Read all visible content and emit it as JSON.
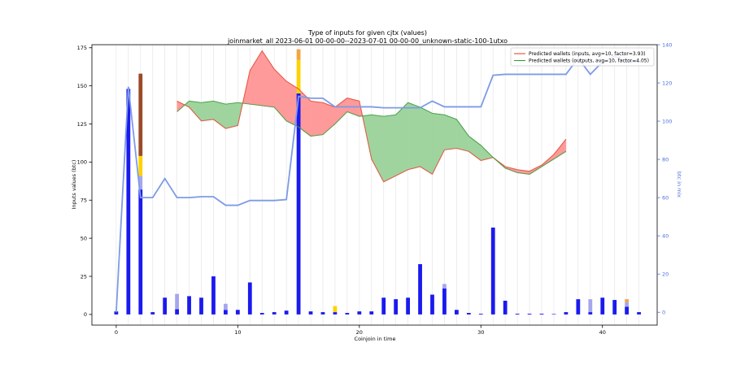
{
  "chart_data": {
    "type": "bar",
    "title": "Type of inputs for given cjtx (values)",
    "subtitle": "joinmarket_all 2023-06-01 00-00-00--2023-07-01 00-00-00_unknown-static-100-1utxo",
    "xlabel": "Coinjoin in time",
    "ylabel": "Inputs values (btc)",
    "y2label": "btc in mix",
    "xlim": [
      -2,
      44.5
    ],
    "ylim": [
      -7,
      177
    ],
    "y2lim": [
      -6.7,
      140
    ],
    "x_ticks": [
      0,
      10,
      20,
      30,
      40
    ],
    "y_ticks": [
      0,
      25,
      50,
      75,
      100,
      125,
      150,
      175
    ],
    "y2_ticks": [
      0,
      20,
      40,
      60,
      80,
      100,
      120,
      140
    ],
    "grid": "vertical lines at each coinjoin",
    "colors": {
      "bar_main": "#1a1aee",
      "bar_light": "#a6a6ee",
      "bar_yellow": "#ffd200",
      "bar_orange": "#f2a640",
      "bar_brown": "#9a4a27",
      "inputs_line": "#e24a33",
      "inputs_fill": "#ff9a9a",
      "outputs_line": "#3a9a3a",
      "outputs_fill": "#9fd49f",
      "mix_line": "#7d9be6",
      "y2_axis": "#4d6fdc"
    },
    "bar_stacks": [
      {
        "x": 0,
        "segments": [
          {
            "kind": "main",
            "value": 2
          }
        ]
      },
      {
        "x": 1,
        "segments": [
          {
            "kind": "main",
            "value": 148
          }
        ]
      },
      {
        "x": 2,
        "segments": [
          {
            "kind": "main",
            "value": 82
          },
          {
            "kind": "light",
            "value": 9
          },
          {
            "kind": "yellow",
            "value": 13
          },
          {
            "kind": "brown",
            "value": 54
          }
        ]
      },
      {
        "x": 3,
        "segments": [
          {
            "kind": "main",
            "value": 1.5
          }
        ]
      },
      {
        "x": 4,
        "segments": [
          {
            "kind": "main",
            "value": 11
          }
        ]
      },
      {
        "x": 5,
        "segments": [
          {
            "kind": "main",
            "value": 3.5
          },
          {
            "kind": "light",
            "value": 10
          }
        ]
      },
      {
        "x": 6,
        "segments": [
          {
            "kind": "main",
            "value": 12
          }
        ]
      },
      {
        "x": 7,
        "segments": [
          {
            "kind": "main",
            "value": 11
          }
        ]
      },
      {
        "x": 8,
        "segments": [
          {
            "kind": "main",
            "value": 25
          }
        ]
      },
      {
        "x": 9,
        "segments": [
          {
            "kind": "main",
            "value": 3
          },
          {
            "kind": "light",
            "value": 4
          }
        ]
      },
      {
        "x": 10,
        "segments": [
          {
            "kind": "main",
            "value": 3
          }
        ]
      },
      {
        "x": 11,
        "segments": [
          {
            "kind": "main",
            "value": 21
          }
        ]
      },
      {
        "x": 12,
        "segments": [
          {
            "kind": "main",
            "value": 1
          }
        ]
      },
      {
        "x": 13,
        "segments": [
          {
            "kind": "main",
            "value": 1.5
          }
        ]
      },
      {
        "x": 14,
        "segments": [
          {
            "kind": "main",
            "value": 2.5
          }
        ]
      },
      {
        "x": 15,
        "segments": [
          {
            "kind": "main",
            "value": 145
          },
          {
            "kind": "yellow",
            "value": 22
          },
          {
            "kind": "orange",
            "value": 7
          }
        ]
      },
      {
        "x": 16,
        "segments": [
          {
            "kind": "main",
            "value": 2
          }
        ]
      },
      {
        "x": 17,
        "segments": [
          {
            "kind": "main",
            "value": 1.5
          }
        ]
      },
      {
        "x": 18,
        "segments": [
          {
            "kind": "main",
            "value": 1.5
          },
          {
            "kind": "yellow",
            "value": 4
          }
        ]
      },
      {
        "x": 19,
        "segments": [
          {
            "kind": "main",
            "value": 1
          }
        ]
      },
      {
        "x": 20,
        "segments": [
          {
            "kind": "main",
            "value": 2
          }
        ]
      },
      {
        "x": 21,
        "segments": [
          {
            "kind": "main",
            "value": 2
          }
        ]
      },
      {
        "x": 22,
        "segments": [
          {
            "kind": "main",
            "value": 11
          }
        ]
      },
      {
        "x": 23,
        "segments": [
          {
            "kind": "main",
            "value": 10
          }
        ]
      },
      {
        "x": 24,
        "segments": [
          {
            "kind": "main",
            "value": 11
          }
        ]
      },
      {
        "x": 25,
        "segments": [
          {
            "kind": "main",
            "value": 33
          }
        ]
      },
      {
        "x": 26,
        "segments": [
          {
            "kind": "main",
            "value": 13
          }
        ]
      },
      {
        "x": 27,
        "segments": [
          {
            "kind": "main",
            "value": 17
          },
          {
            "kind": "light",
            "value": 3
          }
        ]
      },
      {
        "x": 28,
        "segments": [
          {
            "kind": "main",
            "value": 3
          }
        ]
      },
      {
        "x": 29,
        "segments": [
          {
            "kind": "main",
            "value": 1
          }
        ]
      },
      {
        "x": 30,
        "segments": [
          {
            "kind": "main",
            "value": 0.5
          }
        ]
      },
      {
        "x": 31,
        "segments": [
          {
            "kind": "main",
            "value": 57
          }
        ]
      },
      {
        "x": 32,
        "segments": [
          {
            "kind": "main",
            "value": 9
          }
        ]
      },
      {
        "x": 33,
        "segments": [
          {
            "kind": "main",
            "value": 0.5
          }
        ]
      },
      {
        "x": 34,
        "segments": [
          {
            "kind": "main",
            "value": 0.5
          }
        ]
      },
      {
        "x": 35,
        "segments": [
          {
            "kind": "main",
            "value": 0.5
          }
        ]
      },
      {
        "x": 36,
        "segments": [
          {
            "kind": "main",
            "value": 0.3
          }
        ]
      },
      {
        "x": 37,
        "segments": [
          {
            "kind": "main",
            "value": 1.5
          }
        ]
      },
      {
        "x": 38,
        "segments": [
          {
            "kind": "main",
            "value": 10
          }
        ]
      },
      {
        "x": 39,
        "segments": [
          {
            "kind": "main",
            "value": 1.5
          },
          {
            "kind": "light",
            "value": 8.5
          }
        ]
      },
      {
        "x": 40,
        "segments": [
          {
            "kind": "main",
            "value": 11
          }
        ]
      },
      {
        "x": 41,
        "segments": [
          {
            "kind": "main",
            "value": 9.5
          }
        ]
      },
      {
        "x": 42,
        "segments": [
          {
            "kind": "main",
            "value": 5
          },
          {
            "kind": "light",
            "value": 3
          },
          {
            "kind": "orange",
            "value": 2
          }
        ]
      },
      {
        "x": 43,
        "segments": [
          {
            "kind": "main",
            "value": 1.5
          }
        ]
      }
    ],
    "series": [
      {
        "name": "Predicted wallets (inputs, avg=10, factor=3.93)",
        "axis": "left",
        "x": [
          5,
          6,
          7,
          8,
          9,
          10,
          11,
          12,
          13,
          14,
          15,
          16,
          17,
          18,
          19,
          20,
          21,
          22,
          23,
          24,
          25,
          26,
          27,
          28,
          29,
          30,
          31,
          32,
          33,
          34,
          35,
          36,
          37
        ],
        "values": [
          140,
          136,
          127,
          128,
          122,
          124,
          160,
          173,
          161,
          153,
          148,
          140,
          139,
          136,
          142,
          140,
          102,
          87,
          91,
          95,
          97,
          92,
          108,
          109,
          107,
          101,
          103,
          97,
          95,
          94,
          98,
          105,
          115
        ]
      },
      {
        "name": "Predicted wallets (outputs, avg=10, factor=4.05)",
        "axis": "left",
        "x": [
          5,
          6,
          7,
          8,
          9,
          10,
          11,
          12,
          13,
          14,
          15,
          16,
          17,
          18,
          19,
          20,
          21,
          22,
          23,
          24,
          25,
          26,
          27,
          28,
          29,
          30,
          31,
          32,
          33,
          34,
          35,
          36,
          37
        ],
        "values": [
          133,
          140,
          139,
          140,
          138,
          139,
          138,
          137,
          136,
          127,
          123,
          117,
          118,
          125,
          133,
          130,
          131,
          130,
          131,
          139,
          136,
          132,
          131,
          128,
          117,
          111,
          103,
          96,
          93,
          92,
          97,
          102,
          107
        ]
      },
      {
        "name": "btc in mix",
        "axis": "right",
        "x": [
          0,
          1,
          2,
          3,
          4,
          5,
          6,
          7,
          8,
          9,
          10,
          11,
          12,
          13,
          14,
          15,
          16,
          17,
          18,
          19,
          20,
          21,
          22,
          23,
          24,
          25,
          26,
          27,
          28,
          29,
          30,
          31,
          32,
          33,
          34,
          35,
          36,
          37,
          38,
          39,
          40,
          41,
          42,
          43
        ],
        "values": [
          0,
          118,
          60,
          60,
          70,
          60,
          60,
          60.5,
          60.5,
          56,
          56,
          58.5,
          58.5,
          58.5,
          59,
          113,
          112,
          112,
          107.5,
          107.5,
          107.5,
          107.5,
          107,
          107,
          107,
          107,
          110.5,
          107.5,
          107.5,
          107.5,
          107.5,
          124,
          124.5,
          124.5,
          124.5,
          124.5,
          124.5,
          124.5,
          133,
          124.5,
          131,
          134,
          131,
          131
        ]
      }
    ],
    "legend": {
      "placement": "top-right",
      "entries": [
        {
          "label": "Predicted wallets (inputs, avg=10, factor=3.93)",
          "color": "#e24a33"
        },
        {
          "label": "Predicted wallets (outputs, avg=10, factor=4.05)",
          "color": "#3a9a3a"
        }
      ]
    }
  }
}
